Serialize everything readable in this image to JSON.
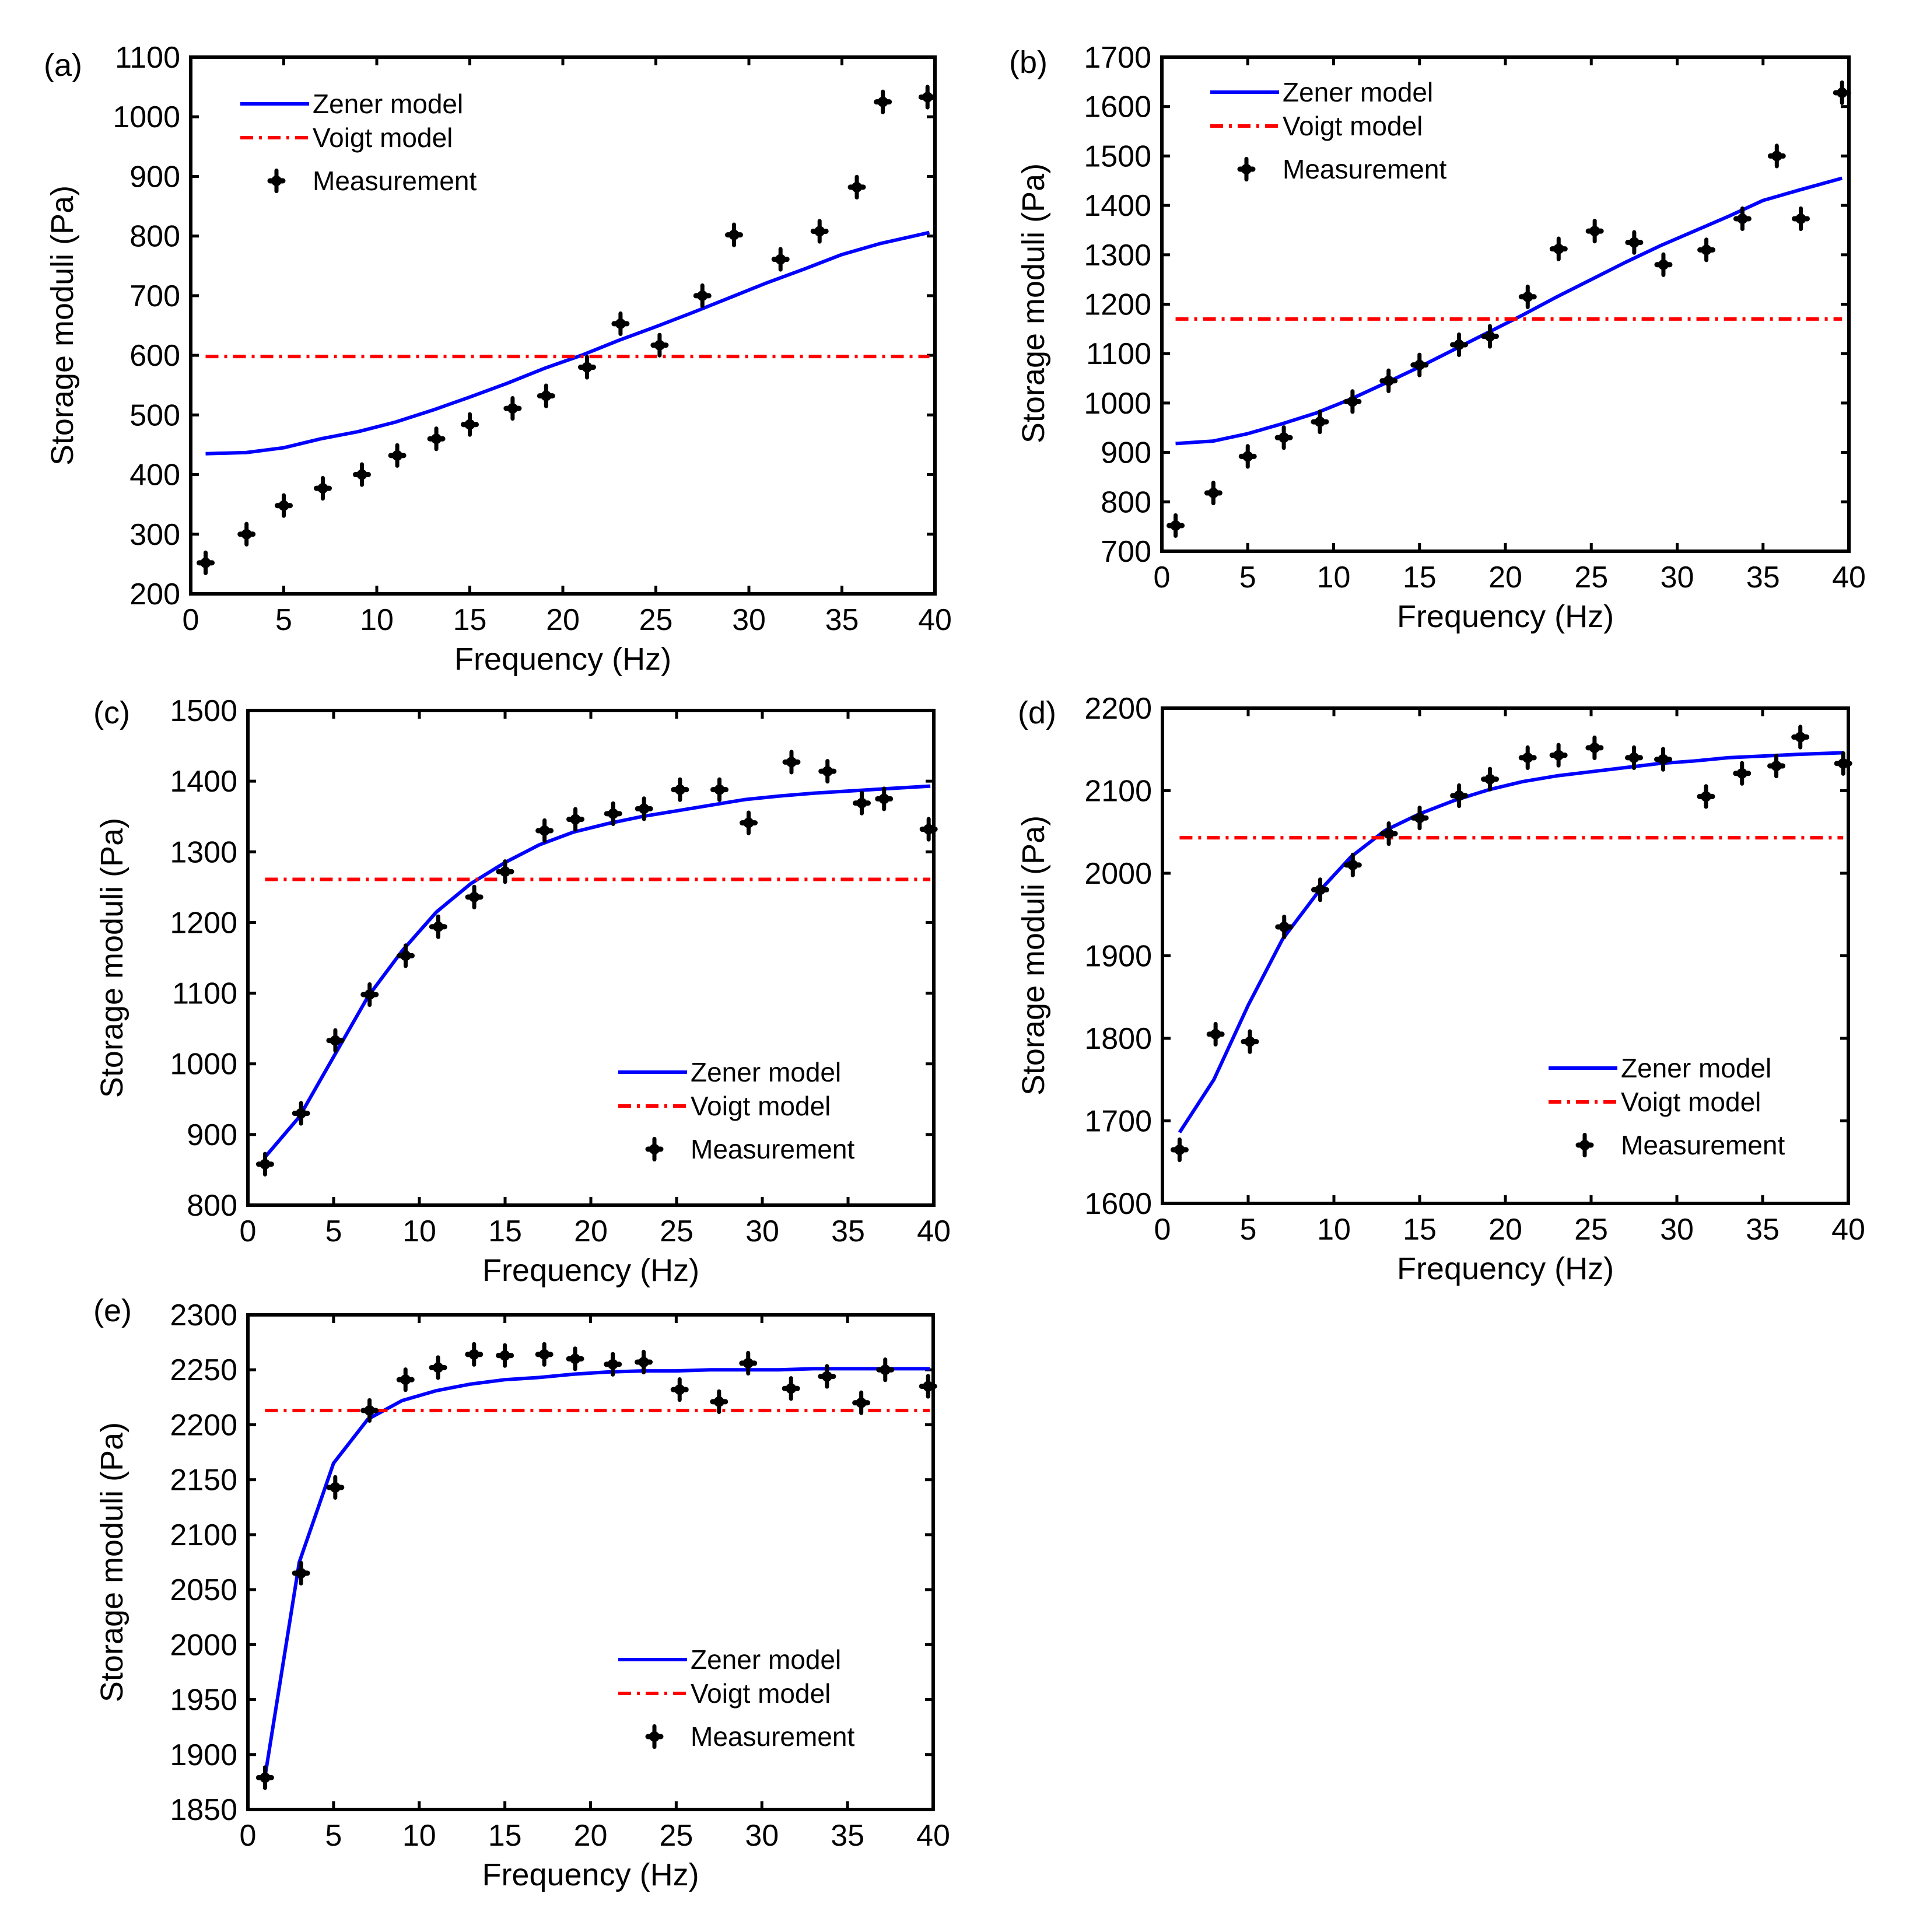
{
  "figure": {
    "x_axis_label": "Frequency (Hz)",
    "y_axis_label": "Storage moduli (Pa)",
    "legend": {
      "zener": "Zener model",
      "voigt": "Voigt model",
      "measurement": "Measurement"
    },
    "colors": {
      "zener": "#0000ff",
      "voigt": "#ff0000",
      "measurement": "#000000"
    }
  },
  "chart_data": [
    {
      "panel": "(a)",
      "type": "line",
      "title": "",
      "xlabel": "Frequency (Hz)",
      "ylabel": "Storage moduli (Pa)",
      "xlim": [
        0,
        40
      ],
      "ylim": [
        200,
        1100
      ],
      "xticks": [
        0,
        5,
        10,
        15,
        20,
        25,
        30,
        35,
        40
      ],
      "yticks": [
        200,
        300,
        400,
        500,
        600,
        700,
        800,
        900,
        1000,
        1100
      ],
      "grid": false,
      "legend_position": "top-left",
      "series": [
        {
          "name": "Zener model",
          "style": "solid",
          "x": [
            0.8,
            3,
            5,
            7,
            9,
            11,
            13,
            15,
            17,
            19,
            21,
            23,
            25,
            27,
            29,
            31,
            33,
            35,
            37,
            39.7
          ],
          "y": [
            435,
            437,
            445,
            460,
            472,
            488,
            508,
            530,
            553,
            578,
            600,
            625,
            648,
            672,
            697,
            722,
            745,
            769,
            787,
            806
          ]
        },
        {
          "name": "Voigt model",
          "style": "dash-dot",
          "x": [
            0.8,
            39.7
          ],
          "y": [
            598,
            598
          ]
        },
        {
          "name": "Measurement",
          "style": "marker",
          "x": [
            0.8,
            3,
            5,
            7.1,
            9.2,
            11.1,
            13.2,
            15,
            17.3,
            19.1,
            21.3,
            23.1,
            25.2,
            27.5,
            29.2,
            31.7,
            33.8,
            35.8,
            37.2,
            39.6
          ],
          "y": [
            252,
            300,
            348,
            377,
            400,
            432,
            460,
            484,
            511,
            532,
            580,
            653,
            617,
            700,
            802,
            761,
            808,
            882,
            1025,
            1033
          ]
        }
      ]
    },
    {
      "panel": "(b)",
      "type": "line",
      "title": "",
      "xlabel": "Frequency (Hz)",
      "ylabel": "Storage moduli (Pa)",
      "xlim": [
        0,
        40
      ],
      "ylim": [
        700,
        1700
      ],
      "xticks": [
        0,
        5,
        10,
        15,
        20,
        25,
        30,
        35,
        40
      ],
      "yticks": [
        700,
        800,
        900,
        1000,
        1100,
        1200,
        1300,
        1400,
        1500,
        1600,
        1700
      ],
      "grid": false,
      "legend_position": "top-left",
      "series": [
        {
          "name": "Zener model",
          "style": "solid",
          "x": [
            0.8,
            3,
            5,
            7,
            9,
            11,
            13,
            15,
            17,
            19,
            21,
            23,
            25,
            27,
            29,
            31,
            33,
            35,
            37,
            39.6
          ],
          "y": [
            918,
            923,
            938,
            958,
            980,
            1008,
            1040,
            1073,
            1108,
            1143,
            1178,
            1215,
            1250,
            1285,
            1318,
            1348,
            1378,
            1410,
            1430,
            1455
          ]
        },
        {
          "name": "Voigt model",
          "style": "dash-dot",
          "x": [
            0.8,
            39.6
          ],
          "y": [
            1170,
            1170
          ]
        },
        {
          "name": "Measurement",
          "style": "marker",
          "x": [
            0.8,
            3,
            5,
            7.1,
            9.2,
            11.1,
            13.2,
            15,
            17.3,
            19.1,
            21.3,
            23.1,
            25.2,
            27.5,
            29.2,
            31.7,
            33.8,
            35.8,
            37.2,
            39.6
          ],
          "y": [
            752,
            818,
            892,
            930,
            962,
            1003,
            1045,
            1077,
            1118,
            1135,
            1215,
            1312,
            1348,
            1325,
            1280,
            1310,
            1373,
            1500,
            1373,
            1628
          ]
        }
      ]
    },
    {
      "panel": "(c)",
      "type": "line",
      "title": "",
      "xlabel": "Frequency (Hz)",
      "ylabel": "Storage moduli (Pa)",
      "xlim": [
        0,
        40
      ],
      "ylim": [
        800,
        1500
      ],
      "xticks": [
        0,
        5,
        10,
        15,
        20,
        25,
        30,
        35,
        40
      ],
      "yticks": [
        800,
        900,
        1000,
        1100,
        1200,
        1300,
        1400,
        1500
      ],
      "grid": false,
      "legend_position": "bottom-right",
      "series": [
        {
          "name": "Zener model",
          "style": "solid",
          "x": [
            1,
            3,
            5,
            7,
            9,
            11,
            13,
            15,
            17,
            19,
            21,
            23,
            25,
            27,
            29,
            31,
            33,
            35,
            37,
            39.8
          ],
          "y": [
            868,
            925,
            1010,
            1095,
            1160,
            1215,
            1255,
            1285,
            1310,
            1328,
            1340,
            1350,
            1358,
            1366,
            1374,
            1379,
            1383,
            1386,
            1389,
            1393
          ]
        },
        {
          "name": "Voigt model",
          "style": "dash-dot",
          "x": [
            1,
            39.8
          ],
          "y": [
            1261,
            1261
          ]
        },
        {
          "name": "Measurement",
          "style": "marker",
          "x": [
            1,
            3.1,
            5.1,
            7.1,
            9.2,
            11.1,
            13.2,
            15,
            17.3,
            19.1,
            21.3,
            23.1,
            25.2,
            27.5,
            29.2,
            31.7,
            33.8,
            35.8,
            37.1,
            39.7
          ],
          "y": [
            858,
            930,
            1033,
            1098,
            1153,
            1194,
            1236,
            1272,
            1330,
            1346,
            1354,
            1361,
            1388,
            1388,
            1341,
            1427,
            1414,
            1369,
            1375,
            1332
          ]
        }
      ]
    },
    {
      "panel": "(d)",
      "type": "line",
      "title": "",
      "xlabel": "Frequency (Hz)",
      "ylabel": "Storage moduli (Pa)",
      "xlim": [
        0,
        40
      ],
      "ylim": [
        1600,
        2200
      ],
      "xticks": [
        0,
        5,
        10,
        15,
        20,
        25,
        30,
        35,
        40
      ],
      "yticks": [
        1600,
        1700,
        1800,
        1900,
        2000,
        2100,
        2200
      ],
      "grid": false,
      "legend_position": "bottom-right",
      "series": [
        {
          "name": "Zener model",
          "style": "solid",
          "x": [
            1,
            3,
            5,
            7,
            9,
            11,
            13,
            15,
            17,
            19,
            21,
            23,
            25,
            27,
            29,
            31,
            33,
            35,
            37,
            39.7
          ],
          "y": [
            1686,
            1750,
            1840,
            1920,
            1975,
            2020,
            2052,
            2072,
            2088,
            2101,
            2111,
            2118,
            2123,
            2128,
            2133,
            2136,
            2140,
            2142,
            2144,
            2146
          ]
        },
        {
          "name": "Voigt model",
          "style": "dash-dot",
          "x": [
            1,
            39.7
          ],
          "y": [
            2043,
            2043
          ]
        },
        {
          "name": "Measurement",
          "style": "marker",
          "x": [
            1,
            3.1,
            5.1,
            7.1,
            9.2,
            11.1,
            13.2,
            15,
            17.3,
            19.1,
            21.3,
            23.1,
            25.2,
            27.5,
            29.2,
            31.7,
            33.8,
            35.8,
            37.2,
            39.7
          ],
          "y": [
            1665,
            1805,
            1796,
            1935,
            1980,
            2010,
            2048,
            2067,
            2094,
            2114,
            2140,
            2143,
            2152,
            2140,
            2138,
            2093,
            2121,
            2130,
            2165,
            2133
          ]
        }
      ]
    },
    {
      "panel": "(e)",
      "type": "line",
      "title": "",
      "xlabel": "Frequency (Hz)",
      "ylabel": "Storage moduli (Pa)",
      "xlim": [
        0,
        40
      ],
      "ylim": [
        1850,
        2300
      ],
      "xticks": [
        0,
        5,
        10,
        15,
        20,
        25,
        30,
        35,
        40
      ],
      "yticks": [
        1850,
        1900,
        1950,
        2000,
        2050,
        2100,
        2150,
        2200,
        2250,
        2300
      ],
      "grid": false,
      "legend_position": "bottom-right",
      "series": [
        {
          "name": "Zener model",
          "style": "solid",
          "x": [
            1,
            3,
            5,
            7,
            9,
            11,
            13,
            15,
            17,
            19,
            21,
            23,
            25,
            27,
            29,
            31,
            33,
            35,
            37,
            39.8
          ],
          "y": [
            1880,
            2075,
            2165,
            2205,
            2222,
            2231,
            2237,
            2241,
            2243,
            2246,
            2248,
            2249,
            2249,
            2250,
            2250,
            2250,
            2251,
            2251,
            2251,
            2251
          ]
        },
        {
          "name": "Voigt model",
          "style": "dash-dot",
          "x": [
            1,
            39.8
          ],
          "y": [
            2213,
            2213
          ]
        },
        {
          "name": "Measurement",
          "style": "marker",
          "x": [
            1,
            3.1,
            5.1,
            7.1,
            9.2,
            11.1,
            13.2,
            15,
            17.3,
            19.1,
            21.3,
            23.1,
            25.2,
            27.5,
            29.2,
            31.7,
            33.8,
            35.8,
            37.2,
            39.7
          ],
          "y": [
            1879,
            2065,
            2143,
            2213,
            2241,
            2252,
            2264,
            2263,
            2264,
            2260,
            2255,
            2257,
            2232,
            2221,
            2256,
            2233,
            2244,
            2220,
            2250,
            2235
          ]
        }
      ]
    }
  ]
}
